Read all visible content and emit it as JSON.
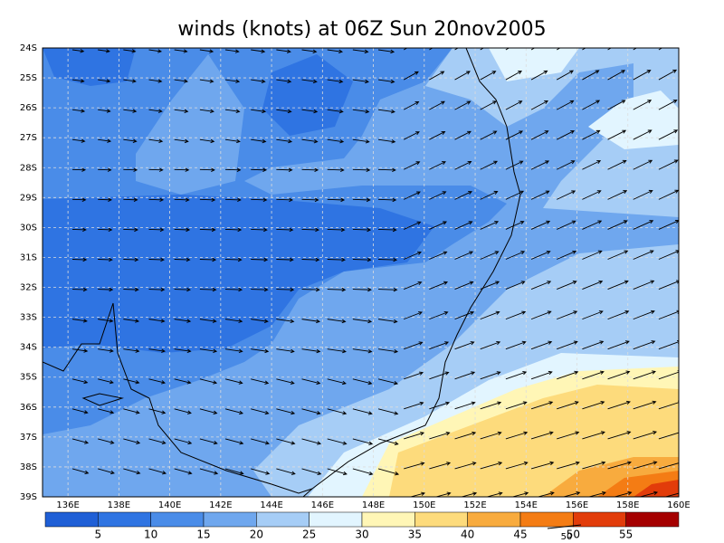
{
  "title": "winds (knots) at 06Z Sun 20nov2005",
  "map": {
    "lon_range": [
      135,
      160
    ],
    "lat_range": [
      -24,
      -39
    ],
    "lat_ticks": [
      {
        "value": -24,
        "label": "24S"
      },
      {
        "value": -25,
        "label": "25S"
      },
      {
        "value": -26,
        "label": "26S"
      },
      {
        "value": -27,
        "label": "27S"
      },
      {
        "value": -28,
        "label": "28S"
      },
      {
        "value": -29,
        "label": "29S"
      },
      {
        "value": -30,
        "label": "30S"
      },
      {
        "value": -31,
        "label": "31S"
      },
      {
        "value": -32,
        "label": "32S"
      },
      {
        "value": -33,
        "label": "33S"
      },
      {
        "value": -34,
        "label": "34S"
      },
      {
        "value": -35,
        "label": "35S"
      },
      {
        "value": -36,
        "label": "36S"
      },
      {
        "value": -37,
        "label": "37S"
      },
      {
        "value": -38,
        "label": "38S"
      },
      {
        "value": -39,
        "label": "39S"
      }
    ],
    "lon_ticks": [
      {
        "value": 136,
        "label": "136E"
      },
      {
        "value": 138,
        "label": "138E"
      },
      {
        "value": 140,
        "label": "140E"
      },
      {
        "value": 142,
        "label": "142E"
      },
      {
        "value": 144,
        "label": "144E"
      },
      {
        "value": 146,
        "label": "146E"
      },
      {
        "value": 148,
        "label": "148E"
      },
      {
        "value": 150,
        "label": "150E"
      },
      {
        "value": 152,
        "label": "152E"
      },
      {
        "value": 154,
        "label": "154E"
      },
      {
        "value": 156,
        "label": "156E"
      },
      {
        "value": 158,
        "label": "158E"
      },
      {
        "value": 160,
        "label": "160E"
      }
    ]
  },
  "colorbar": {
    "levels": [
      5,
      10,
      15,
      20,
      25,
      30,
      35,
      40,
      45,
      50,
      55
    ],
    "colors": [
      "#1f5fd6",
      "#2f74e2",
      "#4a8ce8",
      "#6fa7ee",
      "#a6cdf6",
      "#e2f5ff",
      "#fff6b6",
      "#fddb7c",
      "#f8ab3e",
      "#f47c14",
      "#e23c0a",
      "#a50000"
    ]
  },
  "reference_vector_knots": 50
}
